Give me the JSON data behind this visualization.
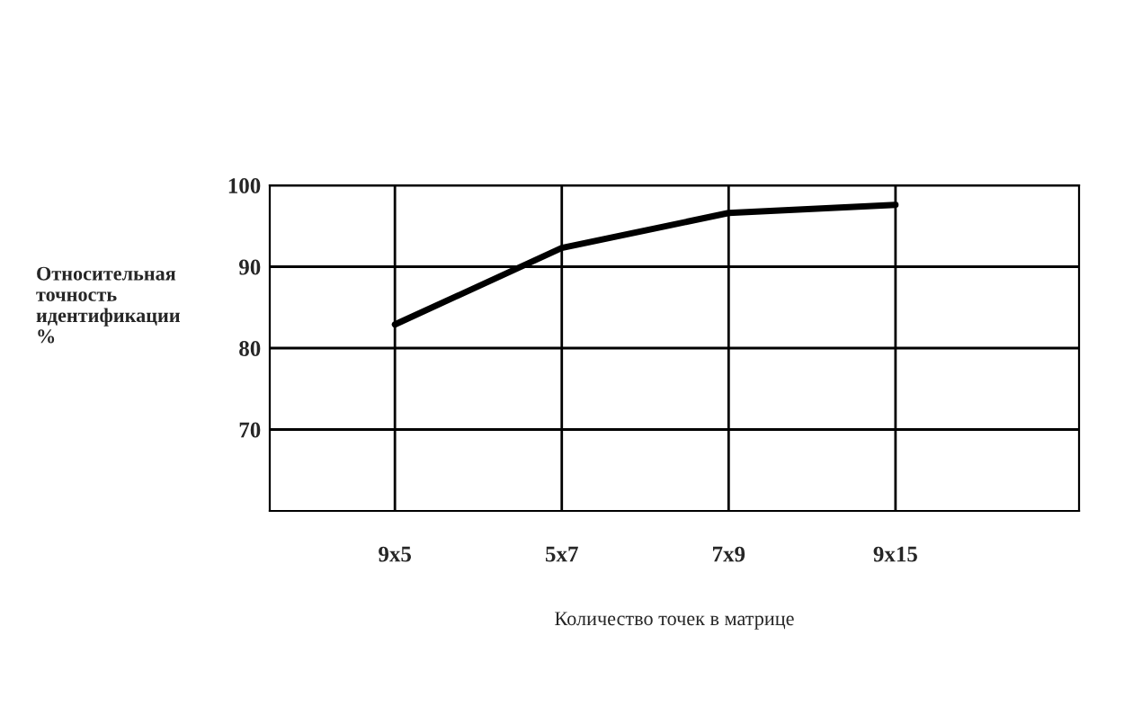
{
  "chart_data": {
    "type": "line",
    "xlabel": "Количество точек в матрице",
    "ylabel": "Относительная\nточность\nидентификации\n%",
    "categories": [
      "9x5",
      "5x7",
      "7x9",
      "9x15"
    ],
    "series": [
      {
        "color": "#000000",
        "values": [
          82.9,
          92.3,
          96.6,
          97.6
        ]
      }
    ],
    "ylim": [
      60,
      100
    ],
    "yticks": [
      70,
      80,
      90,
      100
    ],
    "grid": true,
    "marker": "none",
    "line_style": "solid"
  }
}
